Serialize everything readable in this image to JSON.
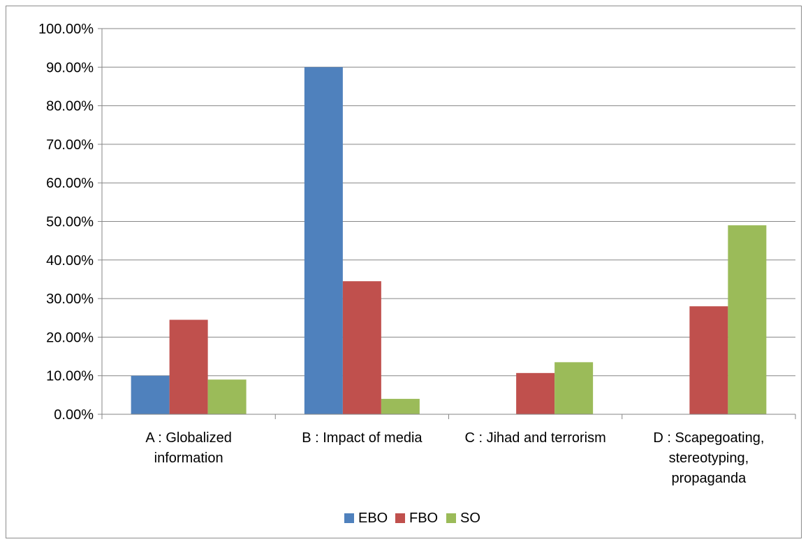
{
  "chart_data": {
    "type": "bar",
    "title": "",
    "xlabel": "",
    "ylabel": "",
    "categories": [
      "A : Globalized information",
      "B : Impact of media",
      "C : Jihad and terrorism",
      "D : Scapegoating, stereotyping, propaganda"
    ],
    "category_lines": [
      [
        "A : Globalized",
        "information"
      ],
      [
        "B : Impact of media"
      ],
      [
        "C : Jihad and terrorism"
      ],
      [
        "D : Scapegoating,",
        "stereotyping,",
        "propaganda"
      ]
    ],
    "series": [
      {
        "name": "EBO",
        "color": "#4F81BD",
        "values": [
          10.0,
          90.0,
          0.0,
          0.0
        ]
      },
      {
        "name": "FBO",
        "color": "#C0504D",
        "values": [
          24.5,
          34.5,
          10.7,
          28.0
        ]
      },
      {
        "name": "SO",
        "color": "#9BBB59",
        "values": [
          9.0,
          4.0,
          13.5,
          49.0
        ]
      }
    ],
    "ylim": [
      0,
      100
    ],
    "y_ticks": [
      0,
      10,
      20,
      30,
      40,
      50,
      60,
      70,
      80,
      90,
      100
    ],
    "y_tick_labels": [
      "0.00%",
      "10.00%",
      "20.00%",
      "30.00%",
      "40.00%",
      "50.00%",
      "60.00%",
      "70.00%",
      "80.00%",
      "90.00%",
      "100.00%"
    ],
    "grid": true,
    "legend_position": "bottom"
  }
}
